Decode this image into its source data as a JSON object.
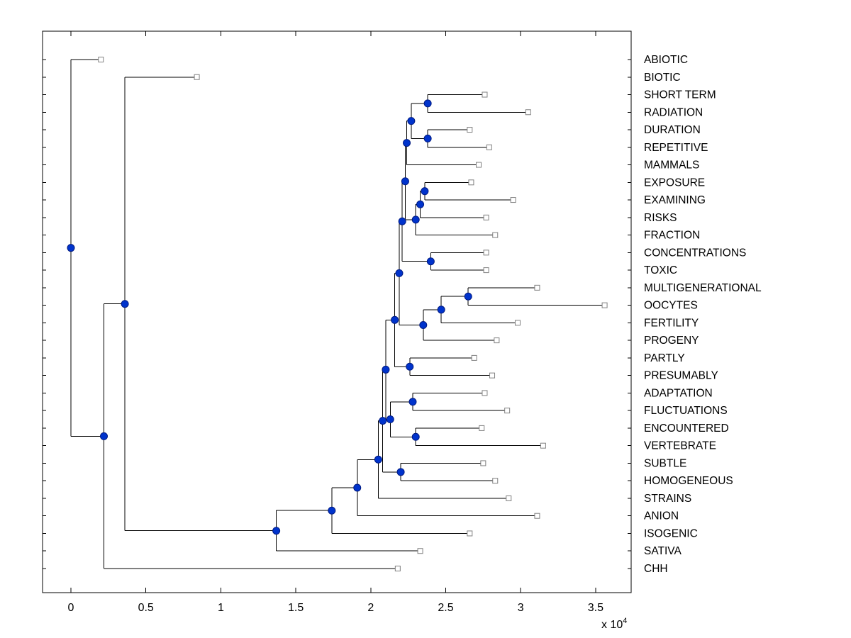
{
  "chart_data": {
    "type": "dendrogram",
    "orientation": "root-left-leaves-right",
    "grid": false,
    "legend": "none",
    "x_axis": {
      "tick_labels": [
        "0",
        "0.5",
        "1",
        "1.5",
        "2",
        "2.5",
        "3",
        "3.5"
      ],
      "tick_values": [
        0,
        0.5,
        1,
        1.5,
        2,
        2.5,
        3,
        3.5
      ],
      "multiplier": {
        "text": "x 10",
        "exponent": "4"
      },
      "xlim": [
        -0.19,
        3.74
      ]
    },
    "colors": {
      "line": "#000000",
      "internal_node_fill": "#0033cc",
      "internal_node_border": "#001a80",
      "leaf_marker_fill": "#ffffff",
      "leaf_marker_border": "#808080",
      "text": "#000000",
      "axis": "#000000"
    },
    "leaves": [
      {
        "label": "ABIOTIC",
        "height": 0.2
      },
      {
        "label": "BIOTIC",
        "height": 0.84
      },
      {
        "label": "SHORT TERM",
        "height": 2.76
      },
      {
        "label": "RADIATION",
        "height": 3.05
      },
      {
        "label": "DURATION",
        "height": 2.66
      },
      {
        "label": "REPETITIVE",
        "height": 2.79
      },
      {
        "label": "MAMMALS",
        "height": 2.72
      },
      {
        "label": "EXPOSURE",
        "height": 2.67
      },
      {
        "label": "EXAMINING",
        "height": 2.95
      },
      {
        "label": "RISKS",
        "height": 2.77
      },
      {
        "label": "FRACTION",
        "height": 2.83
      },
      {
        "label": "CONCENTRATIONS",
        "height": 2.77
      },
      {
        "label": "TOXIC",
        "height": 2.77
      },
      {
        "label": "MULTIGENERATIONAL",
        "height": 3.11
      },
      {
        "label": "OOCYTES",
        "height": 3.56
      },
      {
        "label": "FERTILITY",
        "height": 2.98
      },
      {
        "label": "PROGENY",
        "height": 2.84
      },
      {
        "label": "PARTLY",
        "height": 2.69
      },
      {
        "label": "PRESUMABLY",
        "height": 2.81
      },
      {
        "label": "ADAPTATION",
        "height": 2.76
      },
      {
        "label": "FLUCTUATIONS",
        "height": 2.91
      },
      {
        "label": "ENCOUNTERED",
        "height": 2.74
      },
      {
        "label": "VERTEBRATE",
        "height": 3.15
      },
      {
        "label": "SUBTLE",
        "height": 2.75
      },
      {
        "label": "HOMOGENEOUS",
        "height": 2.83
      },
      {
        "label": "STRAINS",
        "height": 2.92
      },
      {
        "label": "ANION",
        "height": 3.11
      },
      {
        "label": "ISOGENIC",
        "height": 2.66
      },
      {
        "label": "SATIVA",
        "height": 2.33
      },
      {
        "label": "CHH",
        "height": 2.18
      }
    ],
    "merges": [
      {
        "children": [
          "L2",
          "L3"
        ],
        "height": 2.38
      },
      {
        "children": [
          "L4",
          "L5"
        ],
        "height": 2.38
      },
      {
        "children": [
          "N0",
          "N1"
        ],
        "height": 2.27
      },
      {
        "children": [
          "N2",
          "L6"
        ],
        "height": 2.24
      },
      {
        "children": [
          "L7",
          "L8"
        ],
        "height": 2.36
      },
      {
        "children": [
          "N4",
          "L9"
        ],
        "height": 2.33
      },
      {
        "children": [
          "N5",
          "L10"
        ],
        "height": 2.3
      },
      {
        "children": [
          "N3",
          "N6"
        ],
        "height": 2.23
      },
      {
        "children": [
          "L11",
          "L12"
        ],
        "height": 2.4
      },
      {
        "children": [
          "N7",
          "N8"
        ],
        "height": 2.21
      },
      {
        "children": [
          "L13",
          "L14"
        ],
        "height": 2.65
      },
      {
        "children": [
          "N10",
          "L15"
        ],
        "height": 2.47
      },
      {
        "children": [
          "N11",
          "L16"
        ],
        "height": 2.35
      },
      {
        "children": [
          "N9",
          "N12"
        ],
        "height": 2.19
      },
      {
        "children": [
          "L17",
          "L18"
        ],
        "height": 2.26
      },
      {
        "children": [
          "N13",
          "N14"
        ],
        "height": 2.16
      },
      {
        "children": [
          "L19",
          "L20"
        ],
        "height": 2.28
      },
      {
        "children": [
          "L21",
          "L22"
        ],
        "height": 2.3
      },
      {
        "children": [
          "N16",
          "N17"
        ],
        "height": 2.13
      },
      {
        "children": [
          "N15",
          "N18"
        ],
        "height": 2.1
      },
      {
        "children": [
          "L23",
          "L24"
        ],
        "height": 2.2
      },
      {
        "children": [
          "N19",
          "N20"
        ],
        "height": 2.08
      },
      {
        "children": [
          "N21",
          "L25"
        ],
        "height": 2.05
      },
      {
        "children": [
          "N22",
          "L26"
        ],
        "height": 1.91
      },
      {
        "children": [
          "N23",
          "L27"
        ],
        "height": 1.74
      },
      {
        "children": [
          "N24",
          "L28"
        ],
        "height": 1.37
      },
      {
        "children": [
          "L1",
          "N25"
        ],
        "height": 0.36
      },
      {
        "children": [
          "N26",
          "L29"
        ],
        "height": 0.22
      },
      {
        "children": [
          "L0",
          "N27"
        ],
        "height": 0.0
      }
    ],
    "root": "N28"
  }
}
